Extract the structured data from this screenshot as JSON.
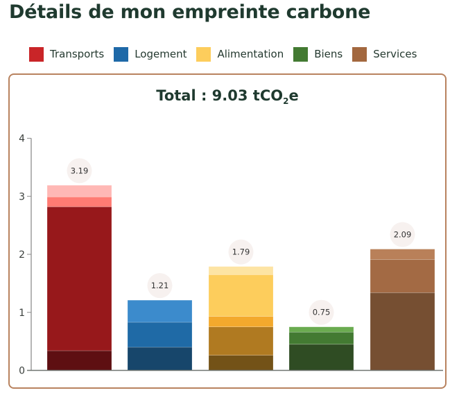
{
  "header": {
    "title": "Détails de mon empreinte carbone"
  },
  "legend": [
    {
      "label": "Transports",
      "color": "#c92528"
    },
    {
      "label": "Logement",
      "color": "#1e69a8"
    },
    {
      "label": "Alimentation",
      "color": "#fdcd5c"
    },
    {
      "label": "Biens",
      "color": "#437a32"
    },
    {
      "label": "Services",
      "color": "#a3683f"
    }
  ],
  "card": {
    "total_prefix": "Total : 9.03 tCO",
    "total_sub": "2",
    "total_suffix": "e"
  },
  "chart_data": {
    "type": "bar",
    "stacked": true,
    "title": "Total : 9.03 tCO2e",
    "xlabel": "",
    "ylabel": "",
    "ylim": [
      0,
      4
    ],
    "yticks": [
      0,
      1,
      2,
      3,
      4
    ],
    "grid": false,
    "legend_position": "top",
    "categories": [
      "Transports",
      "Logement",
      "Alimentation",
      "Biens",
      "Services"
    ],
    "totals": [
      3.19,
      1.21,
      1.79,
      0.75,
      2.09
    ],
    "total_labels": [
      "3.19",
      "1.21",
      "1.79",
      "0.75",
      "2.09"
    ],
    "bars": [
      {
        "category": "Transports",
        "segments": [
          {
            "value": 0.34,
            "color": "#5e0f12"
          },
          {
            "value": 2.48,
            "color": "#97181b"
          },
          {
            "value": 0.17,
            "color": "#ff7b73"
          },
          {
            "value": 0.2,
            "color": "#ffb8b5"
          }
        ]
      },
      {
        "category": "Logement",
        "segments": [
          {
            "value": 0.4,
            "color": "#17466b"
          },
          {
            "value": 0.43,
            "color": "#1f6aa6"
          },
          {
            "value": 0.38,
            "color": "#3c8bcc"
          }
        ]
      },
      {
        "category": "Alimentation",
        "segments": [
          {
            "value": 0.26,
            "color": "#735217"
          },
          {
            "value": 0.49,
            "color": "#b07a21"
          },
          {
            "value": 0.18,
            "color": "#f3a92d"
          },
          {
            "value": 0.72,
            "color": "#fdcd5c"
          },
          {
            "value": 0.14,
            "color": "#fde4a4"
          }
        ]
      },
      {
        "category": "Biens",
        "segments": [
          {
            "value": 0.45,
            "color": "#2f4c23"
          },
          {
            "value": 0.21,
            "color": "#437a32"
          },
          {
            "value": 0.09,
            "color": "#6aab50"
          }
        ]
      },
      {
        "category": "Services",
        "segments": [
          {
            "value": 1.34,
            "color": "#764f32"
          },
          {
            "value": 0.57,
            "color": "#a36a44"
          },
          {
            "value": 0.18,
            "color": "#b98059"
          }
        ]
      }
    ]
  }
}
